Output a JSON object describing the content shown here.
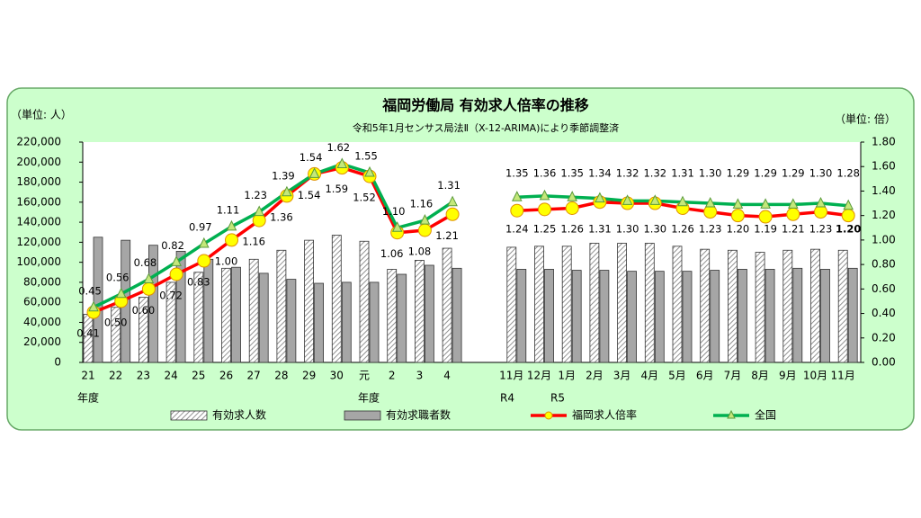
{
  "chart_data": {
    "type": "bar-line",
    "title": "福岡労働局 有効求人倍率の推移",
    "subtitle": "令和5年1月センサス局法Ⅱ（X-12-ARIMA)により季節調整済",
    "y_label": "（単位: 人）",
    "y2_label": "（単位: 倍）",
    "categories": [
      "21",
      "22",
      "23",
      "24",
      "25",
      "26",
      "27",
      "28",
      "29",
      "30",
      "元",
      "2",
      "3",
      "4",
      "11月",
      "12月",
      "1月",
      "2月",
      "3月",
      "4月",
      "5月",
      "6月",
      "7月",
      "8月",
      "9月",
      "10月",
      "11月"
    ],
    "annotations": [
      "年度",
      "年度",
      "R4",
      "R5"
    ],
    "ylim": [
      0,
      220000
    ],
    "yticks": [
      0,
      {
        "value": 20000,
        "label": "20,000"
      },
      {
        "value": 40000,
        "label": "40,000"
      },
      {
        "value": 60000,
        "label": "60,000"
      },
      {
        "value": 80000,
        "label": "80,000"
      },
      {
        "value": 100000,
        "label": "100,000"
      },
      {
        "value": 120000,
        "label": "120,000"
      },
      {
        "value": 140000,
        "label": "140,000"
      },
      {
        "value": 160000,
        "label": "160,000"
      },
      {
        "value": 180000,
        "label": "180,000"
      },
      {
        "value": 200000,
        "label": "200,000"
      },
      {
        "value": 220000,
        "label": "220,000"
      }
    ],
    "y2lim": [
      0,
      1.8
    ],
    "y2ticks": [
      {
        "value": 0,
        "label": "0.00"
      },
      {
        "value": 0.2,
        "label": "0.20"
      },
      {
        "value": 0.4,
        "label": "0.40"
      },
      {
        "value": 0.6,
        "label": "0.60"
      },
      {
        "value": 0.8,
        "label": "0.80"
      },
      {
        "value": 1,
        "label": "1.00"
      },
      {
        "value": 1.2,
        "label": "1.20"
      },
      {
        "value": 1.4,
        "label": "1.40"
      },
      {
        "value": 1.6,
        "label": "1.60"
      },
      {
        "value": 1.8,
        "label": "1.80"
      }
    ],
    "series": [
      {
        "name": "有効求人数",
        "type": "bar",
        "color": "#888888",
        "pattern": "hatch",
        "values": [
          48000,
          55000,
          65000,
          80000,
          90000,
          94000,
          103000,
          112000,
          122000,
          127000,
          121000,
          93000,
          102000,
          114000,
          115000,
          116000,
          116000,
          119000,
          119000,
          119000,
          116000,
          113000,
          112000,
          110000,
          112000,
          113000,
          112000
        ]
      },
      {
        "name": "有効求職者数",
        "type": "bar",
        "color": "#a6a6a6",
        "values": [
          125000,
          122000,
          117000,
          111000,
          103000,
          95000,
          89000,
          83000,
          79000,
          80000,
          80000,
          88000,
          97000,
          94000,
          93000,
          93000,
          92000,
          92000,
          91000,
          91000,
          91000,
          92000,
          93000,
          93000,
          94000,
          93000,
          94000
        ]
      },
      {
        "name": "福岡求人倍率",
        "type": "line",
        "axis": "y2",
        "color": "#ff0000",
        "marker_color": "#ffff00",
        "values": [
          0.41,
          0.5,
          0.6,
          0.72,
          0.83,
          1.0,
          1.16,
          1.36,
          1.54,
          1.59,
          1.52,
          1.06,
          1.08,
          1.21,
          1.24,
          1.25,
          1.26,
          1.31,
          1.3,
          1.3,
          1.26,
          1.23,
          1.2,
          1.19,
          1.21,
          1.23,
          1.2
        ],
        "value_labels": [
          "0.41",
          "0.50",
          "0.60",
          "0.72",
          "0.83",
          "1.00",
          "1.16",
          "1.36",
          "1.54",
          "1.59",
          "1.52",
          "1.06",
          "1.08",
          "1.21",
          "1.24",
          "1.25",
          "1.26",
          "1.31",
          "1.30",
          "1.30",
          "1.26",
          "1.23",
          "1.20",
          "1.19",
          "1.21",
          "1.23",
          "1.20"
        ]
      },
      {
        "name": "全国",
        "type": "line",
        "axis": "y2",
        "color": "#00b050",
        "marker_color": "#c4e87a",
        "values": [
          0.45,
          0.56,
          0.68,
          0.82,
          0.97,
          1.11,
          1.23,
          1.39,
          1.54,
          1.62,
          1.55,
          1.1,
          1.16,
          1.31,
          1.35,
          1.36,
          1.35,
          1.34,
          1.32,
          1.32,
          1.31,
          1.3,
          1.29,
          1.29,
          1.29,
          1.3,
          1.28
        ],
        "value_labels": [
          "0.45",
          "0.56",
          "0.68",
          "0.82",
          "0.97",
          "1.11",
          "1.23",
          "1.39",
          "1.54",
          "1.62",
          "1.55",
          "1.10",
          "1.16",
          "1.31",
          "1.35",
          "1.36",
          "1.35",
          "1.34",
          "1.32",
          "1.32",
          "1.31",
          "1.30",
          "1.29",
          "1.29",
          "1.29",
          "1.30",
          "1.28"
        ]
      }
    ]
  }
}
